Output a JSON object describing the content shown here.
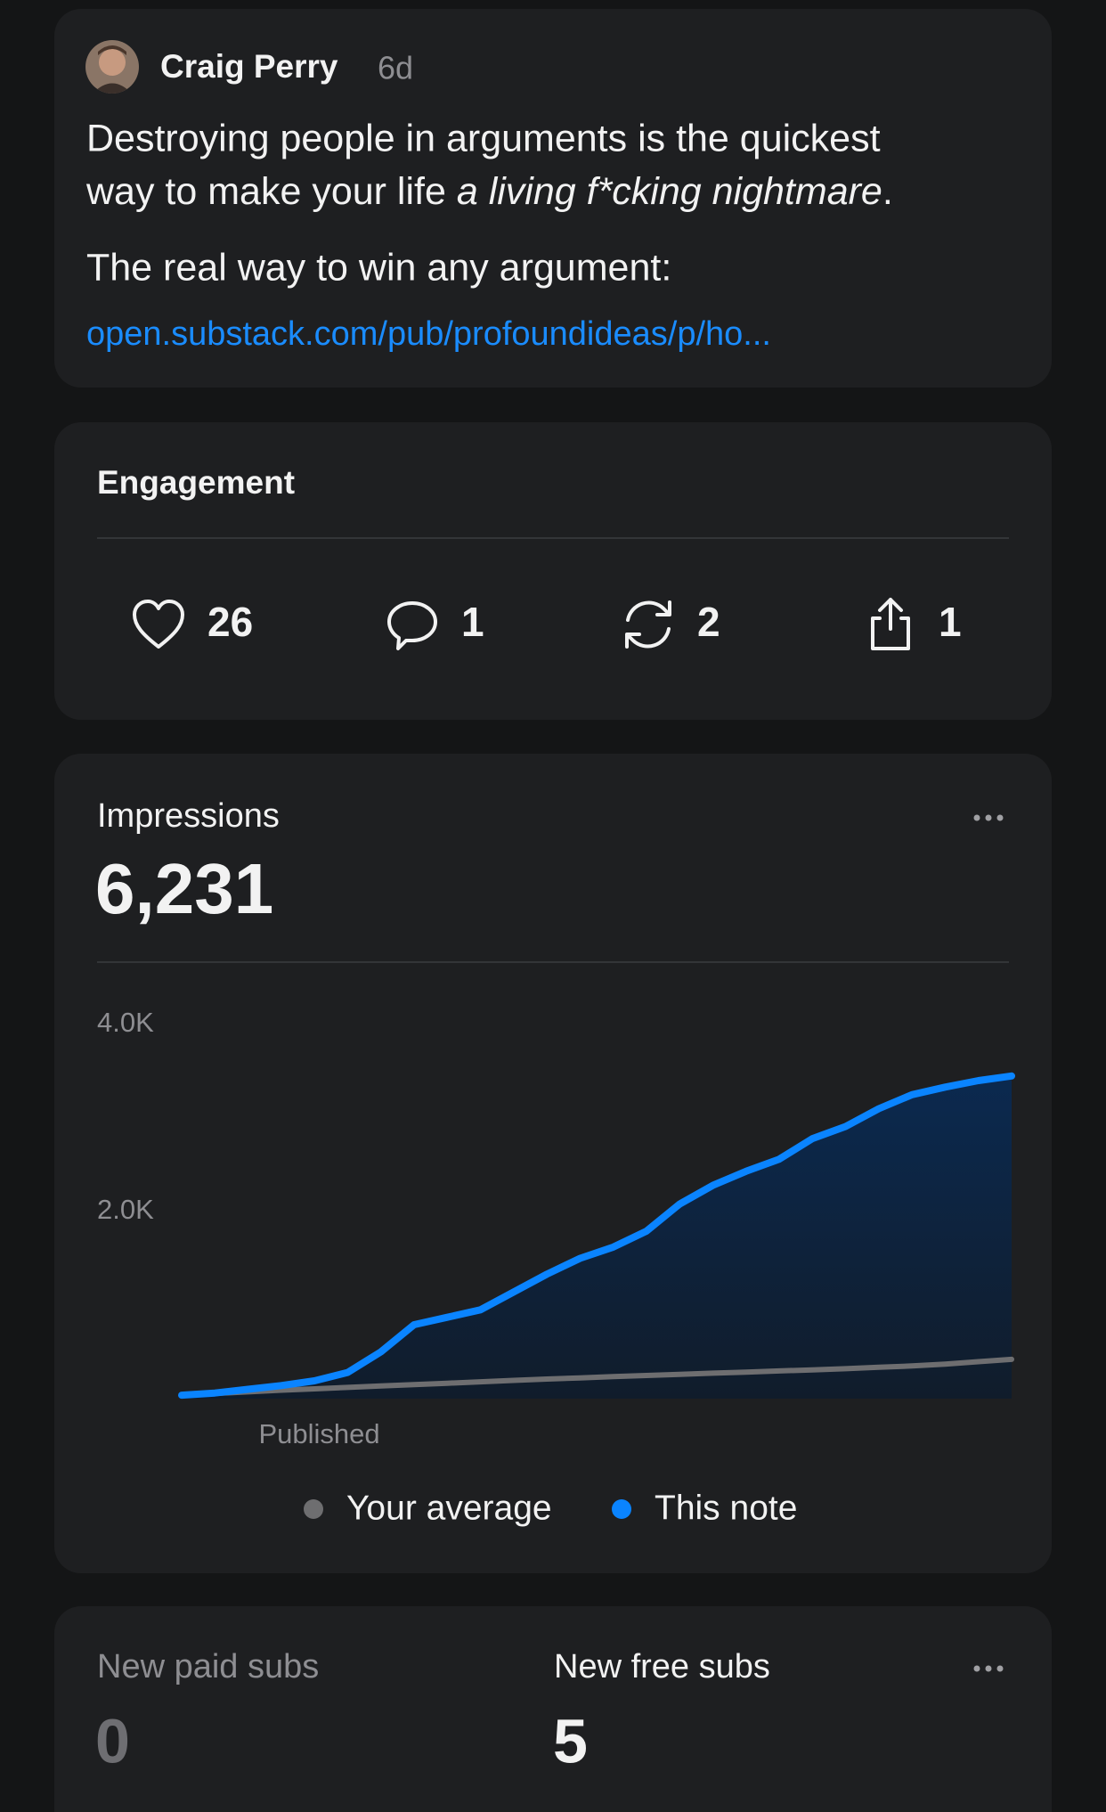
{
  "post": {
    "author": "Craig Perry",
    "age": "6d",
    "line1": "Destroying people in arguments is the quickest",
    "line2_start": "way to make your life ",
    "line2_italic": "a living f*cking nightmare",
    "line2_end": ".",
    "line3": "The real way to win any argument:",
    "link": "open.substack.com/pub/profoundideas/p/ho..."
  },
  "engagement": {
    "title": "Engagement",
    "likes": "26",
    "comments": "1",
    "restacks": "2",
    "shares": "1"
  },
  "impressions": {
    "title": "Impressions",
    "total": "6,231"
  },
  "chart_data": {
    "type": "area-line",
    "categories": [
      null,
      null,
      "Published",
      null,
      null,
      null,
      null,
      null,
      null,
      null,
      null,
      null,
      null,
      null,
      null,
      null,
      null,
      null,
      null,
      null,
      null,
      null,
      null,
      null,
      null,
      null
    ],
    "ylim": [
      0,
      4000
    ],
    "yticks": [
      {
        "value": 2000,
        "label": "2.0K"
      },
      {
        "value": 4000,
        "label": "4.0K"
      }
    ],
    "series": [
      {
        "name": "Your average",
        "color": "#6e6e70",
        "values": [
          37,
          55,
          72,
          90,
          105,
          120,
          135,
          150,
          165,
          180,
          195,
          210,
          222,
          235,
          248,
          260,
          272,
          284,
          296,
          308,
          320,
          335,
          350,
          370,
          395,
          420
        ]
      },
      {
        "name": "This note",
        "color": "#0a84ff",
        "values": [
          37,
          60,
          100,
          140,
          190,
          280,
          500,
          790,
          870,
          950,
          1140,
          1330,
          1500,
          1620,
          1790,
          2080,
          2280,
          2430,
          2560,
          2780,
          2910,
          3100,
          3250,
          3330,
          3400,
          3450
        ]
      }
    ]
  },
  "subs": {
    "paid_label": "New paid subs",
    "paid_value": "0",
    "free_label": "New free subs",
    "free_value": "5"
  }
}
